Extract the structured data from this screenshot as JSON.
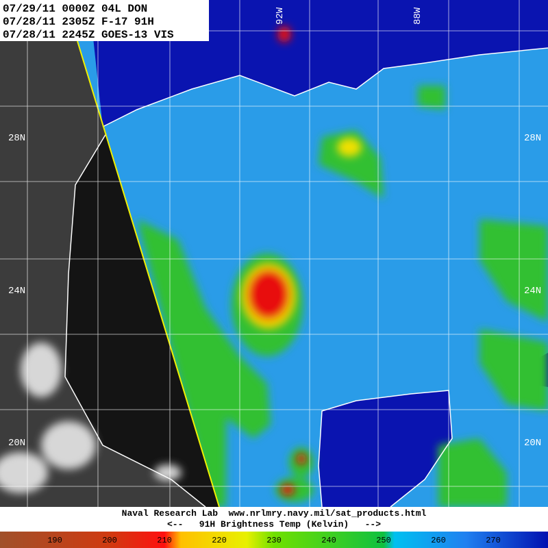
{
  "header": {
    "lines": [
      "07/29/11 0000Z 04L DON",
      "07/28/11 2305Z F-17 91H",
      "07/28/11 2245Z GOES-13 VIS"
    ]
  },
  "latitude_labels": [
    "28N",
    "24N",
    "20N"
  ],
  "longitude_labels": [
    "92W",
    "88W"
  ],
  "footer": {
    "credit": "Naval Research Lab  www.nrlmry.navy.mil/sat_products.html",
    "caption": "<--   91H Brightness Temp (Kelvin)   -->"
  },
  "colorbar": {
    "ticks": [
      190,
      200,
      210,
      220,
      230,
      240,
      250,
      260,
      270
    ]
  }
}
